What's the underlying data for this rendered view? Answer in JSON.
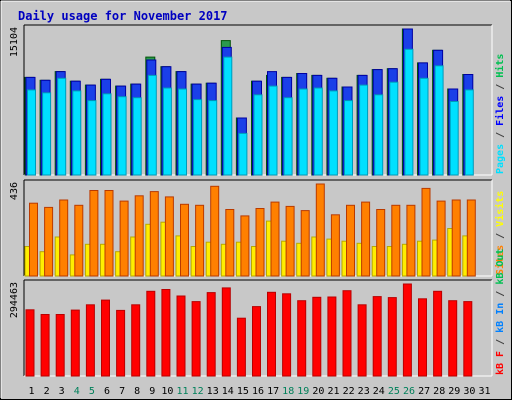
{
  "chart_data": [
    {
      "type": "bar",
      "title": "Daily usage for November 2017",
      "categories": [
        "1",
        "2",
        "3",
        "4",
        "5",
        "6",
        "7",
        "8",
        "9",
        "10",
        "11",
        "12",
        "13",
        "14",
        "15",
        "16",
        "17",
        "18",
        "19",
        "20",
        "21",
        "22",
        "23",
        "24",
        "25",
        "26",
        "27",
        "28",
        "29",
        "30",
        "31"
      ],
      "weekend_days": [
        "4",
        "5",
        "11",
        "12",
        "18",
        "19",
        "25",
        "26"
      ],
      "ymax_label": "15104",
      "ylabel_parts": [
        {
          "text": "Pages",
          "color": "#00e0ff"
        },
        {
          "text": " / ",
          "color": "#404040"
        },
        {
          "text": "Files",
          "color": "#0000ff"
        },
        {
          "text": " / ",
          "color": "#404040"
        },
        {
          "text": "Hits",
          "color": "#00c050"
        }
      ],
      "ymax": 15104,
      "series": [
        {
          "name": "Hits",
          "color": "#2b9a4e",
          "values": [
            10100,
            9800,
            10700,
            9700,
            9300,
            9900,
            9200,
            9400,
            12200,
            11200,
            10700,
            9400,
            9500,
            13900,
            5900,
            9700,
            10300,
            10100,
            10500,
            10300,
            10000,
            9100,
            10300,
            10900,
            11000,
            15104,
            11600,
            12900,
            8900,
            10400,
            0
          ]
        },
        {
          "name": "Files",
          "color": "#1a3fe8",
          "values": [
            10100,
            9800,
            10700,
            9700,
            9300,
            9900,
            9200,
            9400,
            11900,
            11200,
            10700,
            9400,
            9500,
            13200,
            5900,
            9700,
            10700,
            10100,
            10500,
            10300,
            10000,
            9100,
            10300,
            10900,
            11000,
            15104,
            11600,
            12900,
            8900,
            10400,
            0
          ]
        },
        {
          "name": "Pages",
          "color": "#00e0ff",
          "values": [
            8800,
            8500,
            10000,
            8700,
            7700,
            8400,
            8100,
            8000,
            10300,
            9000,
            8900,
            7800,
            7700,
            12200,
            4300,
            8300,
            9200,
            8000,
            8900,
            9000,
            8700,
            7700,
            9300,
            8300,
            9600,
            13000,
            10000,
            11300,
            7600,
            8800,
            0
          ]
        }
      ]
    },
    {
      "type": "bar",
      "ymax_label": "436",
      "ylabel_parts": [
        {
          "text": "Sites",
          "color": "#ff8000"
        },
        {
          "text": " / ",
          "color": "#404040"
        },
        {
          "text": "Visits",
          "color": "#ffff00"
        }
      ],
      "ymax": 436,
      "series": [
        {
          "name": "Visits",
          "color": "#ffee00",
          "values": [
            140,
            115,
            185,
            100,
            150,
            150,
            115,
            185,
            245,
            255,
            190,
            140,
            160,
            150,
            160,
            140,
            260,
            165,
            155,
            185,
            175,
            165,
            155,
            140,
            140,
            150,
            165,
            170,
            225,
            190,
            0
          ]
        },
        {
          "name": "Sites",
          "color": "#ff8000",
          "values": [
            345,
            325,
            360,
            335,
            405,
            405,
            355,
            380,
            400,
            375,
            340,
            335,
            425,
            315,
            285,
            320,
            350,
            330,
            310,
            436,
            290,
            335,
            350,
            315,
            335,
            335,
            415,
            355,
            360,
            360,
            0
          ]
        }
      ]
    },
    {
      "type": "bar",
      "ymax_label": "294463",
      "ylabel_parts": [
        {
          "text": "kB F",
          "color": "#ff0000"
        },
        {
          "text": " / ",
          "color": "#404040"
        },
        {
          "text": "kB In",
          "color": "#0080ff"
        },
        {
          "text": " / ",
          "color": "#404040"
        },
        {
          "text": "kB Out",
          "color": "#00c050"
        }
      ],
      "ymax": 294463,
      "series": [
        {
          "name": "kB F",
          "color": "#ff0000",
          "values": [
            212000,
            197000,
            197000,
            211000,
            228000,
            243000,
            210000,
            228000,
            271000,
            277000,
            256000,
            238000,
            267000,
            282000,
            185000,
            222000,
            268000,
            263000,
            241000,
            252000,
            253000,
            273000,
            228000,
            254000,
            251000,
            294463,
            247000,
            271000,
            241000,
            238000,
            0
          ]
        }
      ]
    }
  ]
}
